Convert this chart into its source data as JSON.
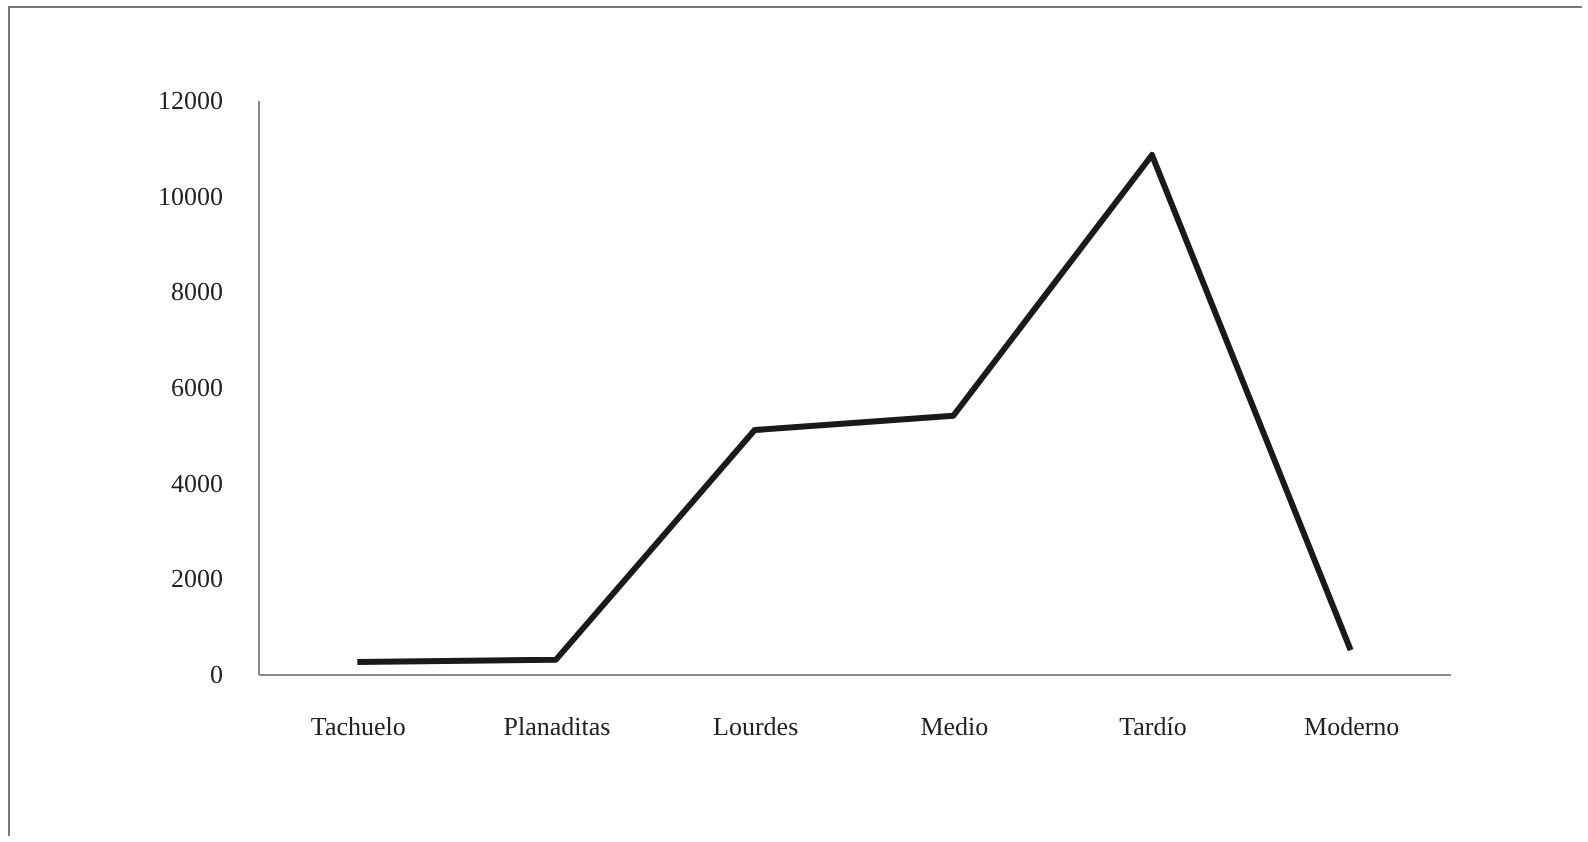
{
  "chart_data": {
    "type": "line",
    "categories": [
      "Tachuelo",
      "Planaditas",
      "Lourdes",
      "Medio",
      "Tardío",
      "Moderno"
    ],
    "series": [
      {
        "color": "#1a1a1a",
        "values": [
          250,
          300,
          5100,
          5400,
          10850,
          500
        ]
      }
    ],
    "ylim": [
      0,
      12000
    ],
    "yticks": [
      0,
      2000,
      4000,
      6000,
      8000,
      10000,
      12000
    ],
    "grid": false,
    "legend": false,
    "marker": "none",
    "line_style": "solid"
  }
}
